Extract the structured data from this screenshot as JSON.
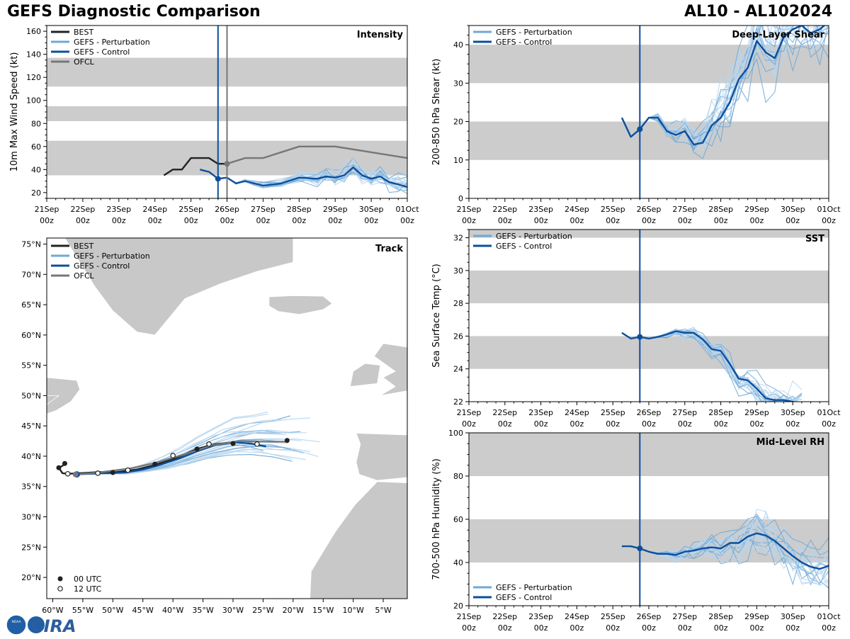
{
  "header": {
    "title": "GEFS Diagnostic Comparison",
    "storm": "AL10 - AL102024"
  },
  "logo": {
    "label": "CIRA",
    "noaa_label": "NOAA"
  },
  "colors": {
    "best": "#222222",
    "perturbation": "#6fa8d6",
    "control": "#0b4f9c",
    "ofcl": "#777777",
    "band": "#cccccc",
    "light_member": "#b9d6ee"
  },
  "time_axis": {
    "ticks": [
      "21Sep",
      "22Sep",
      "23Sep",
      "24Sep",
      "25Sep",
      "26Sep",
      "27Sep",
      "28Sep",
      "29Sep",
      "30Sep",
      "01Oct"
    ],
    "sub": "00z",
    "current_day": 25.75,
    "ofcl_day": 26.0
  },
  "legend": {
    "best": "BEST",
    "pert": "GEFS - Perturbation",
    "ctrl": "GEFS - Control",
    "ofcl": "OFCL",
    "utc00": "00 UTC",
    "utc12": "12 UTC"
  },
  "chart_data": [
    {
      "id": "intensity",
      "type": "line",
      "title": "Intensity",
      "ylabel": "10m Max Wind Speed (kt)",
      "ylim": [
        15,
        165
      ],
      "yticks": [
        20,
        40,
        60,
        80,
        100,
        120,
        140,
        160
      ],
      "bands": [
        [
          35,
          65
        ],
        [
          82,
          95
        ],
        [
          112,
          137
        ]
      ],
      "series": [
        {
          "name": "BEST",
          "x": [
            24.25,
            24.5,
            24.75,
            25.0,
            25.5,
            25.75,
            26.0
          ],
          "y": [
            35,
            40,
            40,
            50,
            50,
            45,
            45
          ]
        },
        {
          "name": "OFCL",
          "x": [
            26.0,
            26.5,
            27.0,
            28.0,
            29.0,
            30.0,
            31.0
          ],
          "y": [
            45,
            50,
            50,
            60,
            60,
            55,
            50
          ]
        },
        {
          "name": "GEFS - Control",
          "x": [
            25.25,
            25.5,
            25.75,
            26.0,
            26.25,
            26.5,
            26.75,
            27.0,
            27.5,
            28.0,
            28.5,
            28.75,
            29.0,
            29.25,
            29.5,
            29.75,
            30.0,
            30.25,
            30.5,
            30.75,
            31.0
          ],
          "y": [
            40,
            38,
            32,
            33,
            28,
            30,
            28,
            26,
            28,
            33,
            32,
            34,
            33,
            35,
            42,
            35,
            32,
            34,
            29,
            27,
            25
          ]
        }
      ]
    },
    {
      "id": "shear",
      "type": "line",
      "title": "Deep-Layer Shear",
      "ylabel": "200-850 hPa Shear (kt)",
      "ylim": [
        0,
        45
      ],
      "yticks": [
        0,
        10,
        20,
        30,
        40
      ],
      "bands": [
        [
          10,
          20
        ],
        [
          30,
          40
        ]
      ],
      "series": [
        {
          "name": "GEFS - Control",
          "x": [
            25.25,
            25.5,
            25.75,
            26.0,
            26.25,
            26.5,
            26.75,
            27.0,
            27.25,
            27.5,
            27.75,
            28.0,
            28.25,
            28.5,
            28.75,
            29.0,
            29.25,
            29.5,
            29.75,
            30.0,
            30.25,
            30.5,
            30.75,
            31.0
          ],
          "y": [
            21,
            16,
            18,
            21,
            21,
            17.5,
            16.5,
            17.5,
            14,
            14.5,
            19,
            21,
            25,
            31,
            34,
            41,
            38,
            36.5,
            42,
            44,
            45,
            43,
            44,
            46
          ]
        }
      ]
    },
    {
      "id": "track",
      "type": "scatter",
      "title": "Track",
      "xlim": [
        -61,
        -1
      ],
      "ylim": [
        16.5,
        76
      ],
      "xlabel_units": "°W",
      "ylabel_units": "°N",
      "xticks": [
        -60,
        -55,
        -50,
        -45,
        -40,
        -35,
        -30,
        -25,
        -20,
        -15,
        -10,
        -5
      ],
      "xtick_labels": [
        "60°W",
        "55°W",
        "50°W",
        "45°W",
        "40°W",
        "35°W",
        "30°W",
        "25°W",
        "20°W",
        "15°W",
        "10°W",
        "5°W"
      ],
      "yticks": [
        20,
        25,
        30,
        35,
        40,
        45,
        50,
        55,
        60,
        65,
        70,
        75
      ],
      "ytick_labels": [
        "20°N",
        "25°N",
        "30°N",
        "35°N",
        "40°N",
        "45°N",
        "50°N",
        "55°N",
        "60°N",
        "65°N",
        "70°N",
        "75°N"
      ],
      "series": [
        {
          "name": "BEST",
          "lon": [
            -58.0,
            -58.4,
            -59.0,
            -58.4,
            -57.5,
            -55.5,
            -52.0,
            -50.0,
            -46.0,
            -42.8,
            -39.5,
            -36.0,
            -33.0,
            -30.0
          ],
          "lat": [
            38.8,
            38.4,
            38.1,
            37.2,
            37.1,
            37.2,
            37.4,
            37.3,
            37.8,
            38.6,
            39.7,
            41.2,
            42.0,
            42.3
          ]
        },
        {
          "name": "GEFS - Control",
          "lon": [
            -56.0,
            -54.0,
            -51.0,
            -48.0,
            -45.0,
            -42.0,
            -39.0,
            -36.0,
            -33.0,
            -30.0,
            -27.0,
            -24.5
          ],
          "lat": [
            37.0,
            37.1,
            37.2,
            37.3,
            37.8,
            38.6,
            39.6,
            40.8,
            41.8,
            42.3,
            42.1,
            41.6
          ]
        },
        {
          "name": "OFCL",
          "lon": [
            -56.2,
            -52.5,
            -47.0,
            -42.5,
            -37.5,
            -33.5,
            -29.0,
            -25.0,
            -21.0
          ],
          "lat": [
            37.0,
            37.3,
            38.0,
            39.0,
            40.5,
            41.8,
            42.5,
            42.4,
            42.4
          ]
        },
        {
          "name": "00 UTC",
          "lon": [
            -58.0,
            -59.0,
            -50.0,
            -43.0,
            -36.0,
            -30.0,
            -21.0
          ],
          "lat": [
            38.8,
            38.1,
            37.3,
            38.7,
            41.2,
            42.1,
            42.6
          ]
        },
        {
          "name": "12 UTC",
          "lon": [
            -57.5,
            -52.5,
            -47.5,
            -40.0,
            -34.0,
            -26.0
          ],
          "lat": [
            37.1,
            37.2,
            37.7,
            40.1,
            42.0,
            42.0
          ]
        }
      ]
    },
    {
      "id": "sst",
      "type": "line",
      "title": "SST",
      "ylabel": "Sea Surface Temp (°C)",
      "ylim": [
        22,
        32.5
      ],
      "yticks": [
        22,
        24,
        26,
        28,
        30,
        32
      ],
      "bands": [
        [
          24,
          26
        ],
        [
          28,
          30
        ],
        [
          32,
          33
        ]
      ],
      "series": [
        {
          "name": "GEFS - Control",
          "x": [
            25.25,
            25.5,
            25.75,
            26.0,
            26.25,
            26.5,
            26.75,
            27.0,
            27.25,
            27.5,
            27.75,
            28.0,
            28.25,
            28.5,
            28.75,
            29.0,
            29.25,
            29.5,
            29.75,
            30.0,
            30.25
          ],
          "y": [
            26.2,
            25.85,
            25.95,
            25.85,
            25.95,
            26.1,
            26.3,
            26.2,
            26.2,
            25.8,
            25.2,
            25.1,
            24.3,
            23.4,
            23.3,
            22.8,
            22.2,
            22.1,
            22.1,
            22.0,
            21.9
          ]
        }
      ]
    },
    {
      "id": "rh",
      "type": "line",
      "title": "Mid-Level RH",
      "ylabel": "700-500 hPa Humidity (%)",
      "ylim": [
        20,
        100
      ],
      "yticks": [
        20,
        40,
        60,
        80,
        100
      ],
      "bands": [
        [
          40,
          60
        ],
        [
          80,
          100
        ]
      ],
      "series": [
        {
          "name": "GEFS - Control",
          "x": [
            25.25,
            25.5,
            25.75,
            26.0,
            26.25,
            26.5,
            26.75,
            27.0,
            27.25,
            27.5,
            27.75,
            28.0,
            28.25,
            28.5,
            28.75,
            29.0,
            29.25,
            29.5,
            29.75,
            30.0,
            30.25,
            30.5,
            30.75,
            31.0
          ],
          "y": [
            47.5,
            47.5,
            46.5,
            45,
            44,
            44,
            43.5,
            45,
            45.5,
            46.5,
            47,
            46.5,
            49,
            49,
            52,
            53.5,
            52.5,
            50,
            46.5,
            43,
            40,
            38,
            37,
            38.5
          ]
        }
      ]
    }
  ]
}
